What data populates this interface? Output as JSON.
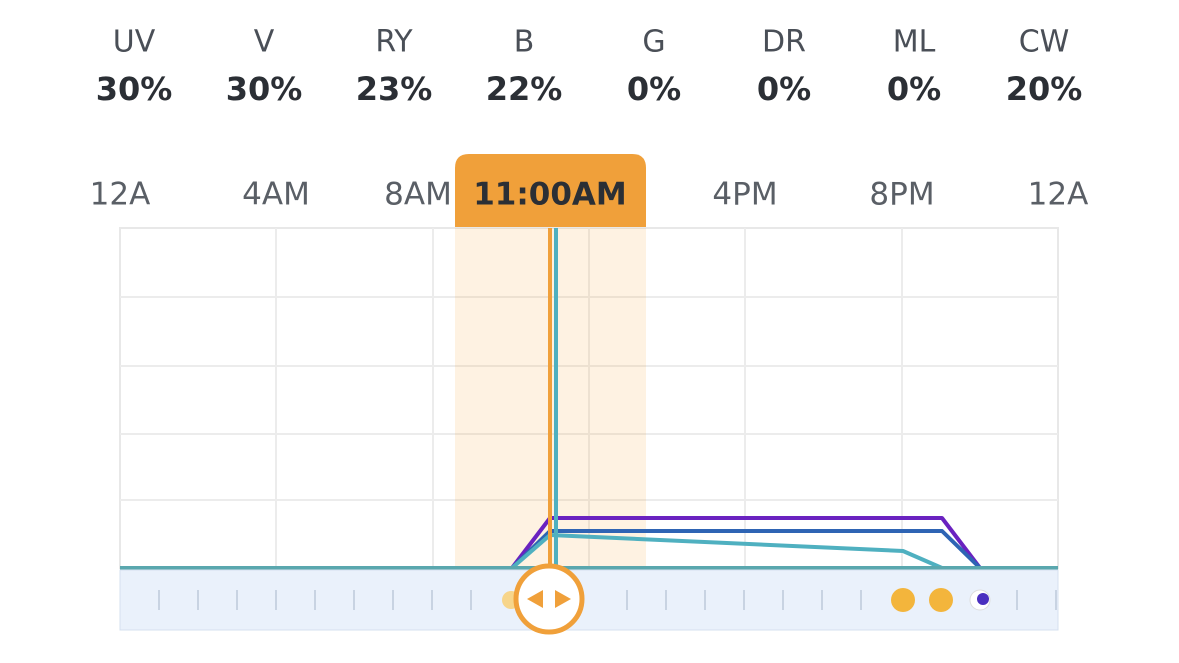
{
  "channels": [
    {
      "name": "UV",
      "value": "30%"
    },
    {
      "name": "V",
      "value": "30%"
    },
    {
      "name": "RY",
      "value": "23%"
    },
    {
      "name": "B",
      "value": "22%"
    },
    {
      "name": "G",
      "value": "0%"
    },
    {
      "name": "DR",
      "value": "0%"
    },
    {
      "name": "ML",
      "value": "0%"
    },
    {
      "name": "CW",
      "value": "20%"
    }
  ],
  "time_axis": {
    "labels": [
      "12A",
      "4AM",
      "8AM",
      "4PM",
      "8PM",
      "12A"
    ],
    "current_time": "11:00AM"
  }
}
